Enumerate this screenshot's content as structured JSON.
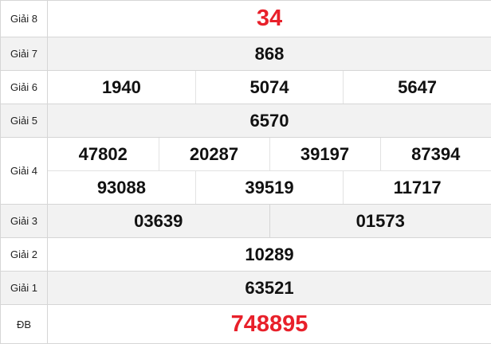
{
  "accent_color": "#e8202a",
  "rows": [
    {
      "label": "Giải 8",
      "numbers": [
        "34"
      ]
    },
    {
      "label": "Giải 7",
      "numbers": [
        "868"
      ]
    },
    {
      "label": "Giải 6",
      "numbers": [
        "1940",
        "5074",
        "5647"
      ]
    },
    {
      "label": "Giải 5",
      "numbers": [
        "6570"
      ]
    },
    {
      "label": "Giải 4",
      "numbers": [
        "47802",
        "20287",
        "39197",
        "87394",
        "93088",
        "39519",
        "11717"
      ]
    },
    {
      "label": "Giải 3",
      "numbers": [
        "03639",
        "01573"
      ]
    },
    {
      "label": "Giải 2",
      "numbers": [
        "10289"
      ]
    },
    {
      "label": "Giải 1",
      "numbers": [
        "63521"
      ]
    },
    {
      "label": "ĐB",
      "numbers": [
        "748895"
      ]
    }
  ]
}
